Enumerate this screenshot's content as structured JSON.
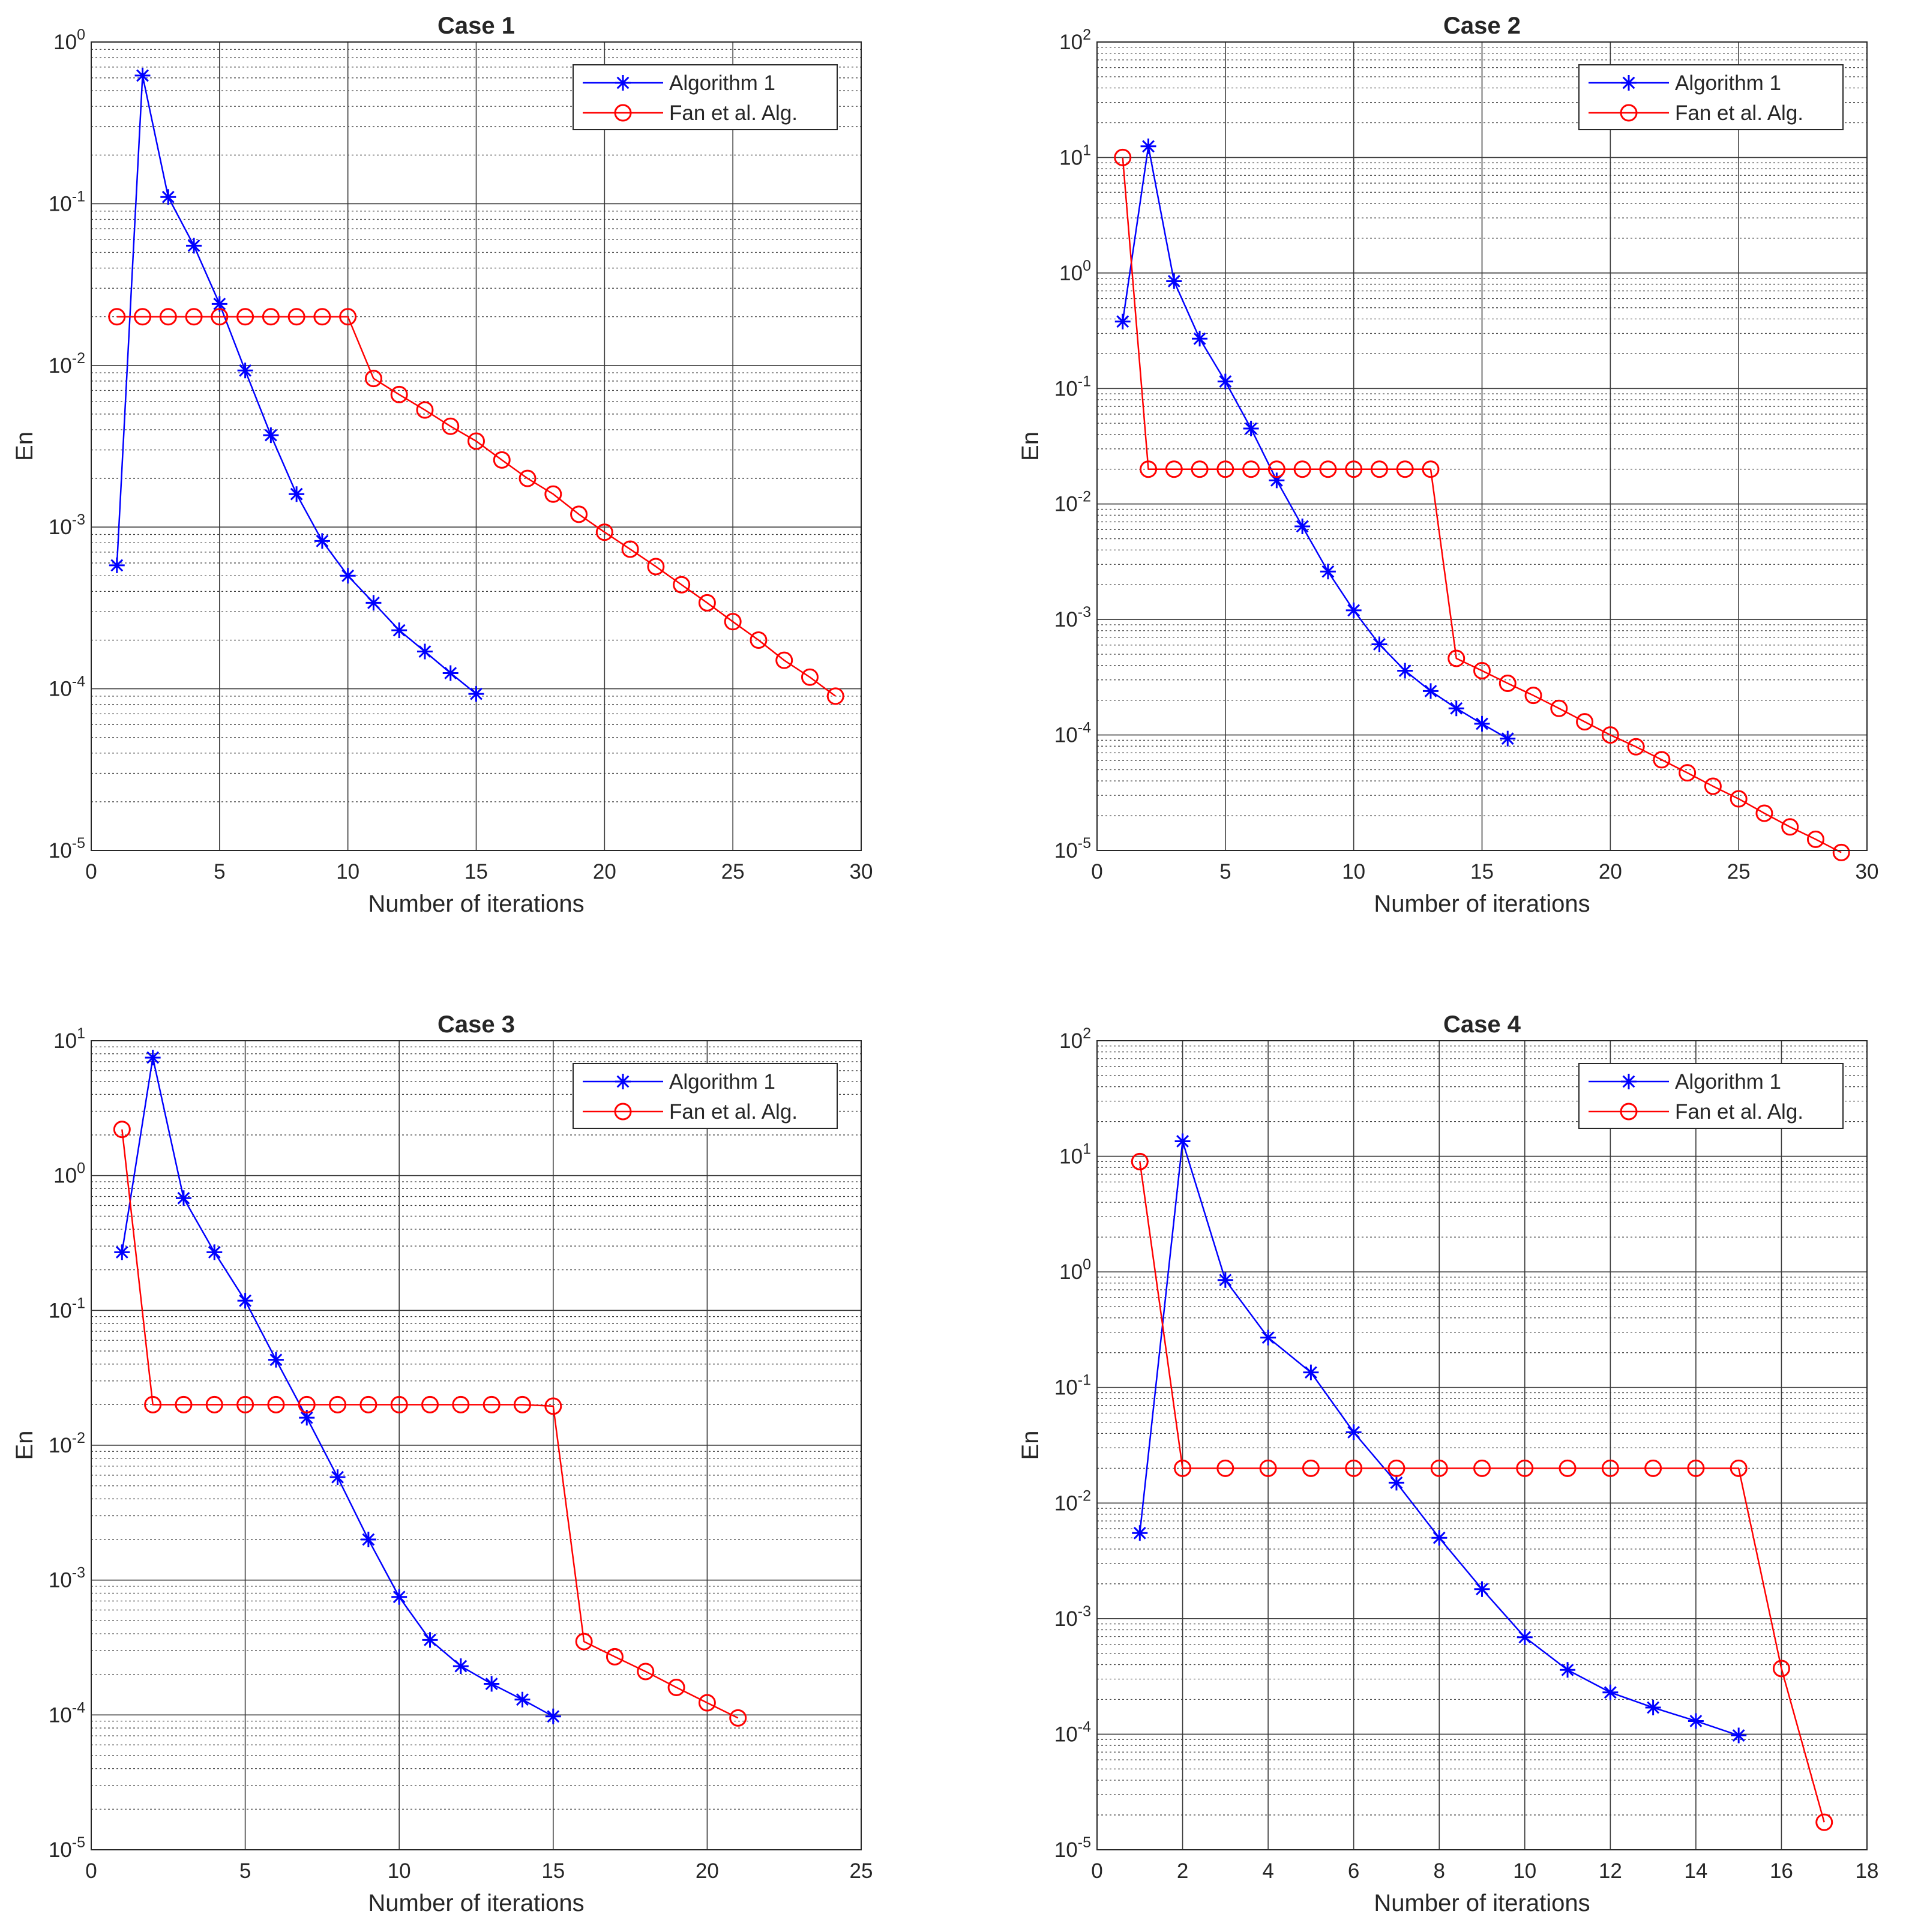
{
  "chart_data": [
    {
      "type": "line",
      "title": "Case 1",
      "xlabel": "Number of iterations",
      "ylabel": "En",
      "xlim": [
        0,
        30
      ],
      "xticks": [
        0,
        5,
        10,
        15,
        20,
        25,
        30
      ],
      "ylim": [
        1e-05,
        1
      ],
      "yscale": "log",
      "yticks": [
        -5,
        -4,
        -3,
        -2,
        -1,
        0
      ],
      "grid": true,
      "legend_position": "top-right",
      "series": [
        {
          "name": "Algorithm 1",
          "color": "#0000ff",
          "marker": "asterisk",
          "x": [
            1,
            2,
            3,
            4,
            5,
            6,
            7,
            8,
            9,
            10,
            11,
            12,
            13,
            14,
            15
          ],
          "y": [
            0.00058,
            0.62,
            0.11,
            0.055,
            0.024,
            0.0093,
            0.0037,
            0.0016,
            0.00082,
            0.0005,
            0.00034,
            0.00023,
            0.00017,
            0.000125,
            9.3e-05
          ]
        },
        {
          "name": "Fan et al. Alg.",
          "color": "#ff0000",
          "marker": "circle",
          "x": [
            1,
            2,
            3,
            4,
            5,
            6,
            7,
            8,
            9,
            10,
            11,
            12,
            13,
            14,
            15,
            16,
            17,
            18,
            19,
            20,
            21,
            22,
            23,
            24,
            25,
            26,
            27,
            28,
            29
          ],
          "y": [
            0.02,
            0.02,
            0.02,
            0.02,
            0.02,
            0.02,
            0.02,
            0.02,
            0.02,
            0.02,
            0.0083,
            0.0066,
            0.0053,
            0.0042,
            0.0034,
            0.0026,
            0.002,
            0.0016,
            0.0012,
            0.00093,
            0.00073,
            0.00057,
            0.00044,
            0.00034,
            0.00026,
            0.0002,
            0.00015,
            0.000118,
            9e-05
          ]
        }
      ]
    },
    {
      "type": "line",
      "title": "Case 2",
      "xlabel": "Number of iterations",
      "ylabel": "En",
      "xlim": [
        0,
        30
      ],
      "xticks": [
        0,
        5,
        10,
        15,
        20,
        25,
        30
      ],
      "ylim": [
        1e-05,
        100
      ],
      "yscale": "log",
      "yticks": [
        -5,
        -4,
        -3,
        -2,
        -1,
        0,
        1,
        2
      ],
      "grid": true,
      "legend_position": "top-right",
      "series": [
        {
          "name": "Algorithm 1",
          "color": "#0000ff",
          "marker": "asterisk",
          "x": [
            1,
            2,
            3,
            4,
            5,
            6,
            7,
            8,
            9,
            10,
            11,
            12,
            13,
            14,
            15,
            16
          ],
          "y": [
            0.38,
            12.5,
            0.85,
            0.27,
            0.115,
            0.045,
            0.016,
            0.0064,
            0.0026,
            0.0012,
            0.00061,
            0.00036,
            0.00024,
            0.00017,
            0.000125,
            9.3e-05
          ]
        },
        {
          "name": "Fan et al. Alg.",
          "color": "#ff0000",
          "marker": "circle",
          "x": [
            1,
            2,
            3,
            4,
            5,
            6,
            7,
            8,
            9,
            10,
            11,
            12,
            13,
            14,
            15,
            16,
            17,
            18,
            19,
            20,
            21,
            22,
            23,
            24,
            25,
            26,
            27,
            28,
            29
          ],
          "y": [
            10,
            0.02,
            0.02,
            0.02,
            0.02,
            0.02,
            0.02,
            0.02,
            0.02,
            0.02,
            0.02,
            0.02,
            0.02,
            0.00046,
            0.00036,
            0.00028,
            0.00022,
            0.00017,
            0.00013,
            0.0001,
            7.9e-05,
            6.1e-05,
            4.7e-05,
            3.6e-05,
            2.8e-05,
            2.1e-05,
            1.6e-05,
            1.25e-05,
            9.6e-06
          ]
        }
      ]
    },
    {
      "type": "line",
      "title": "Case 3",
      "xlabel": "Number of iterations",
      "ylabel": "En",
      "xlim": [
        0,
        25
      ],
      "xticks": [
        0,
        5,
        10,
        15,
        20,
        25
      ],
      "ylim": [
        1e-05,
        10
      ],
      "yscale": "log",
      "yticks": [
        -5,
        -4,
        -3,
        -2,
        -1,
        0,
        1
      ],
      "grid": true,
      "legend_position": "top-right",
      "series": [
        {
          "name": "Algorithm 1",
          "color": "#0000ff",
          "marker": "asterisk",
          "x": [
            1,
            2,
            3,
            4,
            5,
            6,
            7,
            8,
            9,
            10,
            11,
            12,
            13,
            14,
            15
          ],
          "y": [
            0.27,
            7.5,
            0.68,
            0.27,
            0.118,
            0.043,
            0.016,
            0.0058,
            0.002,
            0.00075,
            0.00036,
            0.00023,
            0.00017,
            0.00013,
            9.75e-05
          ]
        },
        {
          "name": "Fan et al. Alg.",
          "color": "#ff0000",
          "marker": "circle",
          "x": [
            1,
            2,
            3,
            4,
            5,
            6,
            7,
            8,
            9,
            10,
            11,
            12,
            13,
            14,
            15,
            16,
            17,
            18,
            19,
            20,
            21
          ],
          "y": [
            2.2,
            0.02,
            0.02,
            0.02,
            0.02,
            0.02,
            0.02,
            0.02,
            0.02,
            0.02,
            0.02,
            0.02,
            0.02,
            0.02,
            0.0195,
            0.00035,
            0.00027,
            0.00021,
            0.00016,
            0.000123,
            9.5e-05
          ]
        }
      ]
    },
    {
      "type": "line",
      "title": "Case 4",
      "xlabel": "Number of iterations",
      "ylabel": "En",
      "xlim": [
        0,
        18
      ],
      "xticks": [
        0,
        2,
        4,
        6,
        8,
        10,
        12,
        14,
        16,
        18
      ],
      "ylim": [
        1e-05,
        100
      ],
      "yscale": "log",
      "yticks": [
        -5,
        -4,
        -3,
        -2,
        -1,
        0,
        1,
        2
      ],
      "grid": true,
      "legend_position": "top-right",
      "series": [
        {
          "name": "Algorithm 1",
          "color": "#0000ff",
          "marker": "asterisk",
          "x": [
            1,
            2,
            3,
            4,
            5,
            6,
            7,
            8,
            9,
            10,
            11,
            12,
            13,
            14,
            15
          ],
          "y": [
            0.0055,
            13.5,
            0.85,
            0.27,
            0.135,
            0.041,
            0.015,
            0.005,
            0.0018,
            0.00069,
            0.00036,
            0.00023,
            0.00017,
            0.00013,
            9.75e-05
          ]
        },
        {
          "name": "Fan et al. Alg.",
          "color": "#ff0000",
          "marker": "circle",
          "x": [
            1,
            2,
            3,
            4,
            5,
            6,
            7,
            8,
            9,
            10,
            11,
            12,
            13,
            14,
            15,
            16,
            17
          ],
          "y": [
            9,
            0.02,
            0.02,
            0.02,
            0.02,
            0.02,
            0.02,
            0.02,
            0.02,
            0.02,
            0.02,
            0.02,
            0.02,
            0.02,
            0.02,
            0.00037,
            1.73e-05
          ]
        }
      ]
    }
  ]
}
